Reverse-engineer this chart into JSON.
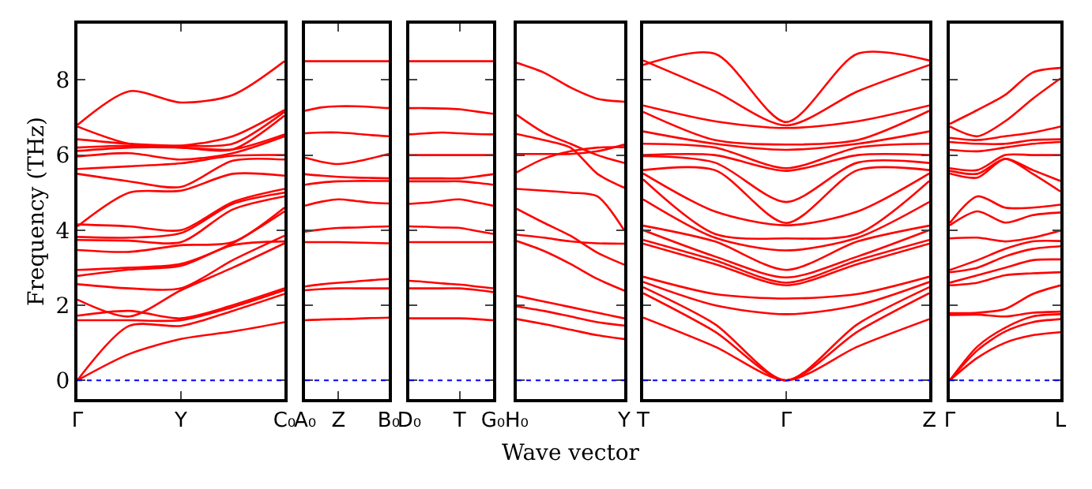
{
  "chart_data": [
    {
      "type": "line",
      "ylabel": "Frequency (THz)",
      "color": "#ff0000",
      "categories": [
        "Γ",
        null,
        "Y",
        null,
        "C₀"
      ],
      "ylim": [
        -0.5,
        9.5
      ],
      "yticks": [
        0,
        2,
        4,
        6,
        8
      ],
      "grid": false,
      "marker": "none",
      "line_style": "solid",
      "ref_lines": [
        {
          "axis": "y",
          "value": 0,
          "color": "#0000ff",
          "line_style": "dotted"
        }
      ],
      "series": [
        {
          "values": [
            0,
            0.7,
            1.1,
            1.3,
            1.55
          ]
        },
        {
          "values": [
            0,
            1.45,
            1.45,
            1.85,
            2.3
          ]
        },
        {
          "values": [
            1.6,
            1.6,
            1.6,
            1.95,
            2.4
          ]
        },
        {
          "values": [
            1.72,
            1.85,
            1.65,
            2.0,
            2.45
          ]
        },
        {
          "values": [
            2.15,
            1.7,
            2.4,
            3.0,
            3.65
          ]
        },
        {
          "values": [
            2.56,
            2.45,
            2.45,
            3.2,
            3.85
          ]
        },
        {
          "values": [
            2.78,
            2.95,
            3.05,
            3.6,
            3.7
          ]
        },
        {
          "values": [
            2.94,
            3.0,
            3.1,
            3.65,
            4.5
          ]
        },
        {
          "values": [
            3.47,
            3.42,
            3.6,
            3.68,
            4.6
          ]
        },
        {
          "values": [
            3.74,
            3.72,
            3.68,
            4.55,
            4.9
          ]
        },
        {
          "values": [
            3.82,
            3.8,
            3.92,
            4.7,
            5.0
          ]
        },
        {
          "values": [
            4.15,
            4.1,
            4.0,
            4.75,
            5.1
          ]
        },
        {
          "values": [
            4.1,
            5.0,
            5.05,
            5.5,
            5.45
          ]
        },
        {
          "values": [
            5.5,
            5.3,
            5.15,
            5.85,
            5.88
          ]
        },
        {
          "values": [
            5.63,
            5.7,
            5.78,
            5.98,
            6.0
          ]
        },
        {
          "values": [
            5.96,
            6.05,
            5.88,
            6.05,
            6.5
          ]
        },
        {
          "values": [
            6.11,
            6.2,
            6.2,
            6.15,
            6.55
          ]
        },
        {
          "values": [
            6.2,
            6.25,
            6.2,
            6.15,
            7.05
          ]
        },
        {
          "values": [
            6.42,
            6.3,
            6.25,
            6.3,
            7.15
          ]
        },
        {
          "values": [
            6.76,
            6.3,
            6.25,
            6.5,
            7.2
          ]
        },
        {
          "values": [
            6.8,
            7.7,
            7.4,
            7.6,
            8.5
          ]
        }
      ]
    },
    {
      "type": "line",
      "color": "#ff0000",
      "categories": [
        "A₀",
        null,
        "Z",
        null,
        null,
        "B₀"
      ],
      "ylim": [
        -0.5,
        9.5
      ],
      "yticks": [
        0,
        2,
        4,
        6,
        8
      ],
      "tick_labels": "x",
      "grid": false,
      "marker": "none",
      "line_style": "solid",
      "ref_lines": [
        {
          "axis": "y",
          "value": 0,
          "color": "#0000ff",
          "line_style": "dotted"
        }
      ],
      "series": [
        {
          "values": [
            1.6,
            1.62,
            1.63,
            1.64,
            1.66,
            1.67
          ]
        },
        {
          "values": [
            2.4,
            2.43,
            2.45,
            2.45,
            2.45,
            2.45
          ]
        },
        {
          "values": [
            2.5,
            2.56,
            2.6,
            2.63,
            2.67,
            2.7
          ]
        },
        {
          "values": [
            3.68,
            3.68,
            3.68,
            3.67,
            3.66,
            3.65
          ]
        },
        {
          "values": [
            3.96,
            4.02,
            4.06,
            4.07,
            4.09,
            4.1
          ]
        },
        {
          "values": [
            4.65,
            4.76,
            4.82,
            4.78,
            4.73,
            4.71
          ]
        },
        {
          "values": [
            5.21,
            5.27,
            5.3,
            5.31,
            5.31,
            5.31
          ]
        },
        {
          "values": [
            5.49,
            5.45,
            5.42,
            5.4,
            5.39,
            5.38
          ]
        },
        {
          "values": [
            5.93,
            5.82,
            5.76,
            5.82,
            5.92,
            6.03
          ]
        },
        {
          "values": [
            6.58,
            6.6,
            6.6,
            6.57,
            6.53,
            6.5
          ]
        },
        {
          "values": [
            7.18,
            7.27,
            7.3,
            7.3,
            7.28,
            7.25
          ]
        },
        {
          "values": [
            8.5,
            8.5,
            8.5,
            8.5,
            8.5,
            8.5
          ]
        }
      ]
    },
    {
      "type": "line",
      "color": "#ff0000",
      "categories": [
        "D₀",
        null,
        null,
        "T",
        null,
        "G₀"
      ],
      "ylim": [
        -0.5,
        9.5
      ],
      "yticks": [
        0,
        2,
        4,
        6,
        8
      ],
      "tick_labels": "x",
      "grid": false,
      "marker": "none",
      "line_style": "solid",
      "ref_lines": [
        {
          "axis": "y",
          "value": 0,
          "color": "#0000ff",
          "line_style": "dotted"
        }
      ],
      "series": [
        {
          "values": [
            1.65,
            1.65,
            1.65,
            1.65,
            1.63,
            1.6
          ]
        },
        {
          "values": [
            2.45,
            2.45,
            2.45,
            2.45,
            2.41,
            2.35
          ]
        },
        {
          "values": [
            2.65,
            2.62,
            2.58,
            2.55,
            2.5,
            2.45
          ]
        },
        {
          "values": [
            3.68,
            3.68,
            3.68,
            3.68,
            3.68,
            3.68
          ]
        },
        {
          "values": [
            4.1,
            4.09,
            4.07,
            4.06,
            3.98,
            3.9
          ]
        },
        {
          "values": [
            4.7,
            4.73,
            4.78,
            4.82,
            4.74,
            4.65
          ]
        },
        {
          "values": [
            5.3,
            5.3,
            5.3,
            5.3,
            5.26,
            5.21
          ]
        },
        {
          "values": [
            5.38,
            5.38,
            5.38,
            5.38,
            5.43,
            5.49
          ]
        },
        {
          "values": [
            6.0,
            6.0,
            6.0,
            6.0,
            6.0,
            6.0
          ]
        },
        {
          "values": [
            6.55,
            6.58,
            6.6,
            6.58,
            6.56,
            6.55
          ]
        },
        {
          "values": [
            7.25,
            7.25,
            7.24,
            7.22,
            7.16,
            7.1
          ]
        },
        {
          "values": [
            8.5,
            8.5,
            8.5,
            8.5,
            8.5,
            8.5
          ]
        }
      ]
    },
    {
      "type": "line",
      "xlabel": "Wave vector",
      "color": "#ff0000",
      "categories": [
        "H₀",
        null,
        null,
        null,
        "Y"
      ],
      "ylim": [
        -0.5,
        9.5
      ],
      "yticks": [
        0,
        2,
        4,
        6,
        8
      ],
      "tick_labels": "x",
      "grid": false,
      "marker": "none",
      "line_style": "solid",
      "ref_lines": [
        {
          "axis": "y",
          "value": 0,
          "color": "#0000ff",
          "line_style": "dotted"
        }
      ],
      "series": [
        {
          "values": [
            1.63,
            1.5,
            1.35,
            1.2,
            1.1
          ]
        },
        {
          "values": [
            1.97,
            1.85,
            1.7,
            1.55,
            1.46
          ]
        },
        {
          "values": [
            2.25,
            2.1,
            1.95,
            1.8,
            1.65
          ]
        },
        {
          "values": [
            3.71,
            3.45,
            3.1,
            2.7,
            2.39
          ]
        },
        {
          "values": [
            3.88,
            3.8,
            3.7,
            3.65,
            3.64
          ]
        },
        {
          "values": [
            4.57,
            4.2,
            3.85,
            3.4,
            3.08
          ]
        },
        {
          "values": [
            5.1,
            5.05,
            5.0,
            4.9,
            3.99
          ]
        },
        {
          "values": [
            5.54,
            5.9,
            6.1,
            6.2,
            6.21
          ]
        },
        {
          "values": [
            6.03,
            6.03,
            6.03,
            6.1,
            6.28
          ]
        },
        {
          "values": [
            6.56,
            6.4,
            6.2,
            5.5,
            5.13
          ]
        },
        {
          "values": [
            7.07,
            6.6,
            6.3,
            6.0,
            5.79
          ]
        },
        {
          "values": [
            8.46,
            8.2,
            7.8,
            7.5,
            7.42
          ]
        }
      ]
    },
    {
      "type": "line",
      "color": "#ff0000",
      "categories": [
        "T",
        null,
        "Γ",
        null,
        "Z"
      ],
      "ylim": [
        -0.5,
        9.5
      ],
      "yticks": [
        0,
        2,
        4,
        6,
        8
      ],
      "tick_labels": "x",
      "grid": false,
      "marker": "none",
      "line_style": "solid",
      "ref_lines": [
        {
          "axis": "y",
          "value": 0,
          "color": "#0000ff",
          "line_style": "dotted"
        }
      ],
      "series": [
        {
          "values": [
            1.67,
            0.9,
            0,
            0.9,
            1.63
          ]
        },
        {
          "values": [
            2.32,
            1.3,
            0,
            1.3,
            2.32
          ]
        },
        {
          "values": [
            2.48,
            1.5,
            0,
            1.5,
            2.48
          ]
        },
        {
          "values": [
            2.62,
            2.0,
            1.76,
            2.0,
            2.62
          ]
        },
        {
          "values": [
            2.76,
            2.3,
            2.18,
            2.3,
            2.76
          ]
        },
        {
          "values": [
            3.64,
            3.1,
            2.53,
            3.1,
            3.64
          ]
        },
        {
          "values": [
            3.74,
            3.2,
            2.6,
            3.2,
            3.74
          ]
        },
        {
          "values": [
            4.0,
            3.3,
            2.74,
            3.3,
            4.0
          ]
        },
        {
          "values": [
            4.12,
            3.7,
            2.94,
            3.7,
            4.12
          ]
        },
        {
          "values": [
            4.82,
            3.8,
            3.46,
            3.8,
            4.75
          ]
        },
        {
          "values": [
            5.35,
            3.9,
            3.78,
            3.9,
            5.31
          ]
        },
        {
          "values": [
            5.51,
            4.5,
            4.13,
            4.5,
            5.51
          ]
        },
        {
          "values": [
            5.6,
            5.6,
            4.19,
            5.6,
            5.6
          ]
        },
        {
          "values": [
            5.97,
            5.8,
            4.75,
            5.8,
            5.79
          ]
        },
        {
          "values": [
            6.0,
            6.0,
            5.58,
            6.0,
            6.0
          ]
        },
        {
          "values": [
            6.3,
            6.2,
            5.65,
            6.2,
            6.3
          ]
        },
        {
          "values": [
            6.63,
            6.3,
            6.14,
            6.3,
            6.63
          ]
        },
        {
          "values": [
            7.15,
            6.4,
            6.28,
            6.4,
            7.18
          ]
        },
        {
          "values": [
            7.32,
            6.9,
            6.72,
            6.9,
            7.32
          ]
        },
        {
          "values": [
            8.52,
            7.7,
            6.79,
            7.7,
            8.4
          ]
        },
        {
          "values": [
            8.4,
            8.7,
            6.88,
            8.7,
            8.52
          ]
        }
      ]
    },
    {
      "type": "line",
      "color": "#ff0000",
      "categories": [
        "Γ",
        null,
        null,
        null,
        "L"
      ],
      "ylim": [
        -0.5,
        9.5
      ],
      "yticks": [
        0,
        2,
        4,
        6,
        8
      ],
      "tick_labels": "x",
      "grid": false,
      "marker": "none",
      "line_style": "solid",
      "ref_lines": [
        {
          "axis": "y",
          "value": 0,
          "color": "#0000ff",
          "line_style": "dotted"
        }
      ],
      "series": [
        {
          "values": [
            0,
            0.6,
            1.0,
            1.2,
            1.28
          ]
        },
        {
          "values": [
            0,
            0.8,
            1.3,
            1.55,
            1.63
          ]
        },
        {
          "values": [
            0,
            0.9,
            1.4,
            1.7,
            1.76
          ]
        },
        {
          "values": [
            1.74,
            1.75,
            1.7,
            1.8,
            1.83
          ]
        },
        {
          "values": [
            1.79,
            1.8,
            1.9,
            2.3,
            2.53
          ]
        },
        {
          "values": [
            2.53,
            2.6,
            2.8,
            2.85,
            2.88
          ]
        },
        {
          "values": [
            2.6,
            2.8,
            3.0,
            3.2,
            3.22
          ]
        },
        {
          "values": [
            2.88,
            3.0,
            3.3,
            3.5,
            3.57
          ]
        },
        {
          "values": [
            2.94,
            3.2,
            3.5,
            3.7,
            3.71
          ]
        },
        {
          "values": [
            3.78,
            3.8,
            3.7,
            3.8,
            3.99
          ]
        },
        {
          "values": [
            4.13,
            4.5,
            4.2,
            4.4,
            4.47
          ]
        },
        {
          "values": [
            4.19,
            4.9,
            4.6,
            4.6,
            4.68
          ]
        },
        {
          "values": [
            5.51,
            5.4,
            5.9,
            5.5,
            5.03
          ]
        },
        {
          "values": [
            5.58,
            5.5,
            5.9,
            5.6,
            5.31
          ]
        },
        {
          "values": [
            5.65,
            5.6,
            6.0,
            6.0,
            6.0
          ]
        },
        {
          "values": [
            6.14,
            6.1,
            6.2,
            6.3,
            6.35
          ]
        },
        {
          "values": [
            6.35,
            6.3,
            6.3,
            6.4,
            6.42
          ]
        },
        {
          "values": [
            6.46,
            6.4,
            6.5,
            6.6,
            6.76
          ]
        },
        {
          "values": [
            6.76,
            6.5,
            6.9,
            7.5,
            8.04
          ]
        },
        {
          "values": [
            6.83,
            7.2,
            7.6,
            8.2,
            8.32
          ]
        }
      ]
    }
  ]
}
